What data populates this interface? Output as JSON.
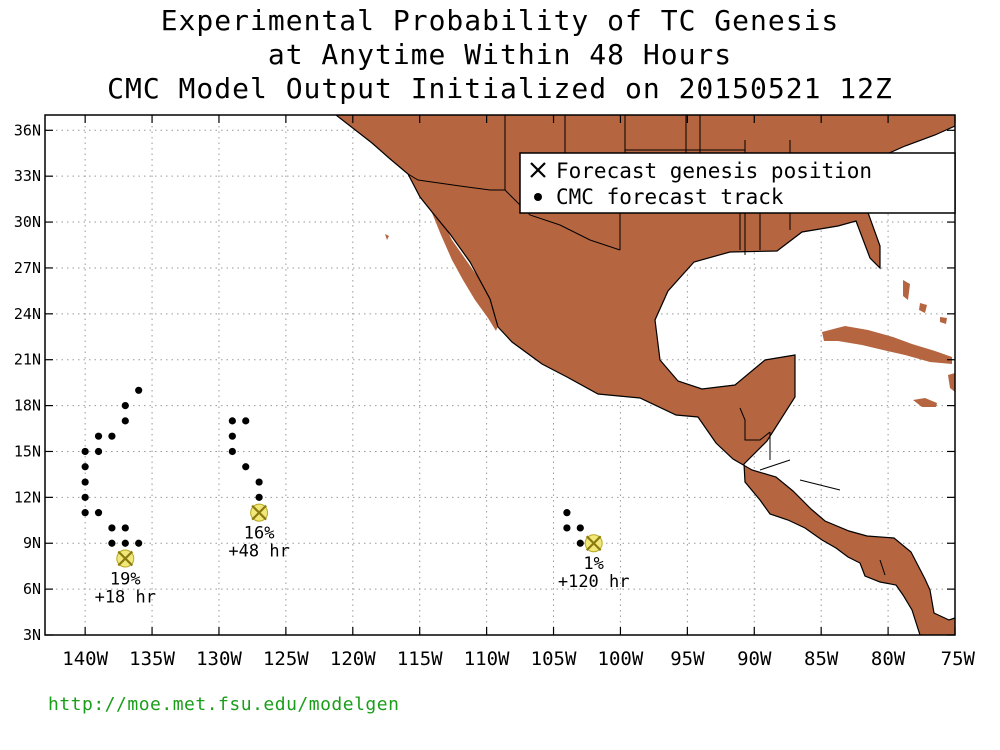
{
  "title": {
    "line1": "Experimental Probability of TC Genesis",
    "line2": "at Anytime Within 48 Hours",
    "line3": "CMC Model Output Initialized on 20150521 12Z"
  },
  "legend": {
    "position": "top-right",
    "genesis_label": "Forecast genesis position",
    "track_label": "CMC forecast track"
  },
  "axes": {
    "lon_ticks": [
      "140W",
      "135W",
      "130W",
      "125W",
      "120W",
      "115W",
      "110W",
      "105W",
      "100W",
      "95W",
      "90W",
      "85W",
      "80W",
      "75W"
    ],
    "lat_ticks": [
      "3N",
      "6N",
      "9N",
      "12N",
      "15N",
      "18N",
      "21N",
      "24N",
      "27N",
      "30N",
      "33N",
      "36N"
    ],
    "lon_range": [
      -143,
      -75
    ],
    "lat_range": [
      3,
      37
    ],
    "grid": true
  },
  "colors": {
    "land": "#b5653f",
    "ocean": "#ffffff",
    "genesis_marker": "#e8d84a",
    "url": "#1a9e1a"
  },
  "systems": [
    {
      "probability": "19%",
      "lead_time": "+18 hr",
      "genesis": [
        -137,
        8
      ],
      "track": [
        [
          -136,
          19
        ],
        [
          -137,
          18
        ],
        [
          -137,
          17
        ],
        [
          -138,
          16
        ],
        [
          -139,
          16
        ],
        [
          -139,
          15
        ],
        [
          -140,
          15
        ],
        [
          -140,
          14
        ],
        [
          -140,
          13
        ],
        [
          -140,
          12
        ],
        [
          -140,
          11
        ],
        [
          -139,
          11
        ],
        [
          -138,
          10
        ],
        [
          -137,
          10
        ],
        [
          -138,
          9
        ],
        [
          -137,
          9
        ],
        [
          -136,
          9
        ]
      ]
    },
    {
      "probability": "16%",
      "lead_time": "+48 hr",
      "genesis": [
        -127,
        11
      ],
      "track": [
        [
          -129,
          17
        ],
        [
          -128,
          17
        ],
        [
          -129,
          16
        ],
        [
          -129,
          15
        ],
        [
          -128,
          14
        ],
        [
          -127,
          13
        ],
        [
          -127,
          12
        ]
      ]
    },
    {
      "probability": "1%",
      "lead_time": "+120 hr",
      "genesis": [
        -102,
        9
      ],
      "track": [
        [
          -104,
          11
        ],
        [
          -104,
          10
        ],
        [
          -103,
          10
        ],
        [
          -103,
          9
        ]
      ]
    }
  ],
  "footer": {
    "url": "http://moe.met.fsu.edu/modelgen"
  }
}
